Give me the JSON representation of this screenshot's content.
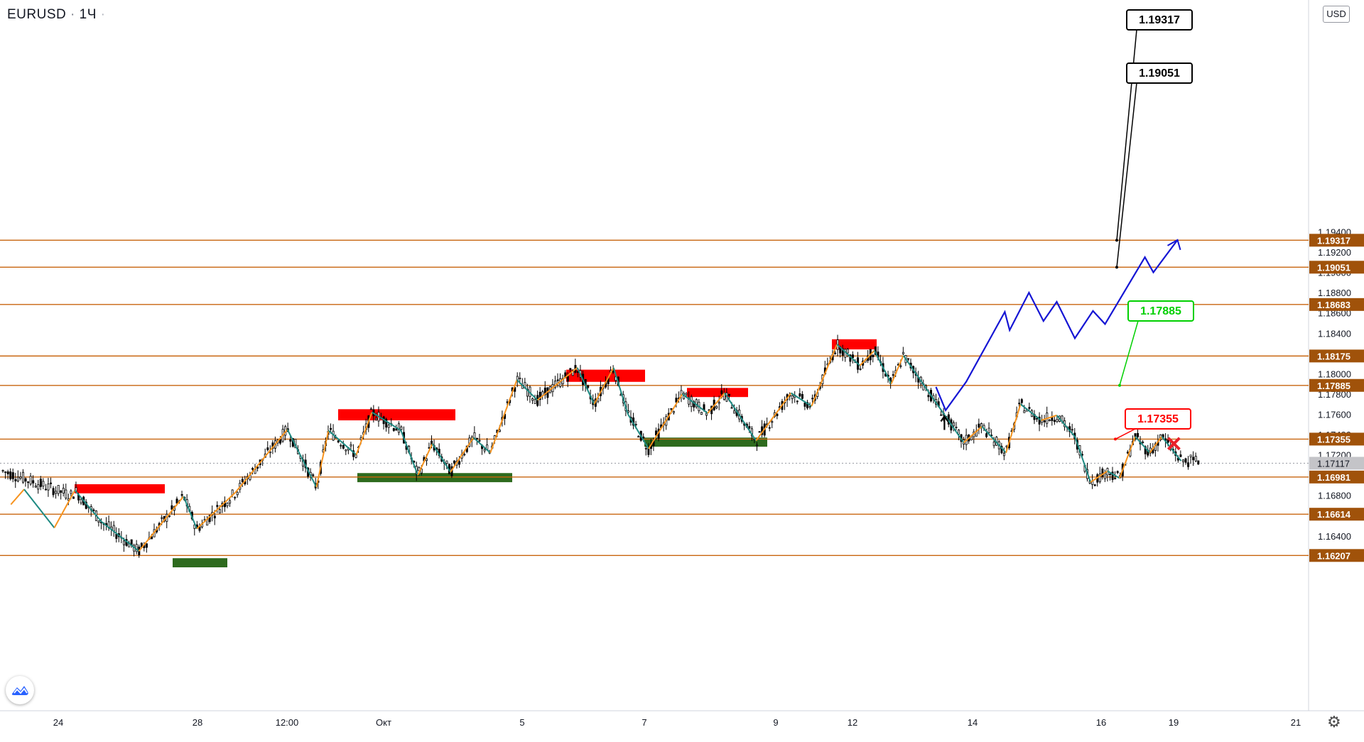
{
  "header": {
    "symbol": "EURUSD",
    "interval": "1Ч",
    "more": "·"
  },
  "currency": "USD",
  "colors": {
    "level": "#c8650f",
    "candle": "#000000",
    "zigzag_up": "#f7931e",
    "zigzag_down": "#1e8a82",
    "forecast": "#1515d4",
    "resistance": "#ff0000",
    "support": "#2e6b1e",
    "callout_black": "#000000",
    "callout_green": "#00d000",
    "callout_red": "#ff0000",
    "axis_text": "#131722",
    "current_price_bg": "#c4c4c8"
  },
  "chart_data": {
    "type": "candlestick",
    "symbol": "EURUSD",
    "interval": "1Ч",
    "ylim": [
      1.1588,
      1.1956
    ],
    "y_ticks": [
      "1.16400",
      "1.16800",
      "1.17200",
      "1.17400",
      "1.17600",
      "1.17800",
      "1.18000",
      "1.18400",
      "1.18600",
      "1.18800",
      "1.19000",
      "1.19200",
      "1.19400"
    ],
    "x_ticks": [
      "24",
      "28",
      "12:00",
      "Окт",
      "5",
      "7",
      "9",
      "12",
      "14",
      "16",
      "19",
      "21"
    ],
    "levels": [
      {
        "value": 1.19317,
        "label": "1.19317"
      },
      {
        "value": 1.19051,
        "label": "1.19051"
      },
      {
        "value": 1.18683,
        "label": "1.18683"
      },
      {
        "value": 1.18175,
        "label": "1.18175"
      },
      {
        "value": 1.17885,
        "label": "1.17885"
      },
      {
        "value": 1.17355,
        "label": "1.17355"
      },
      {
        "value": 1.16981,
        "label": "1.16981"
      },
      {
        "value": 1.16614,
        "label": "1.16614"
      },
      {
        "value": 1.16207,
        "label": "1.16207"
      }
    ],
    "current_price": "1.17117",
    "callouts": [
      {
        "text": "1.19317",
        "color": "black"
      },
      {
        "text": "1.19051",
        "color": "black"
      },
      {
        "text": "1.17885",
        "color": "green"
      },
      {
        "text": "1.17355",
        "color": "red"
      }
    ],
    "resistance_zones": [
      {
        "from": "Sep 24",
        "to": "Sep 25",
        "low": 1.1682,
        "high": 1.1691
      },
      {
        "from": "Sep 30",
        "to": "Oct 2",
        "low": 1.1754,
        "high": 1.1765
      },
      {
        "from": "Oct 5",
        "to": "Oct 6",
        "low": 1.1792,
        "high": 1.1804
      },
      {
        "from": "Oct 7",
        "to": "Oct 8",
        "low": 1.1777,
        "high": 1.1786
      },
      {
        "from": "Oct 9",
        "to": "Oct 12",
        "low": 1.1824,
        "high": 1.1834
      }
    ],
    "support_zones": [
      {
        "from": "Sep 27",
        "to": "Sep 28",
        "low": 1.1609,
        "high": 1.1618
      },
      {
        "from": "Sep 30",
        "to": "Oct 2",
        "low": 1.1693,
        "high": 1.1702
      },
      {
        "from": "Oct 7",
        "to": "Oct 8",
        "low": 1.1728,
        "high": 1.1737
      }
    ],
    "zigzag": [
      {
        "x": 0.09,
        "y": 1.1671
      },
      {
        "x": 0.2,
        "y": 1.1686
      },
      {
        "x": 0.45,
        "y": 1.1648
      },
      {
        "x": 0.62,
        "y": 1.1685
      },
      {
        "x": 0.84,
        "y": 1.1654
      },
      {
        "x": 1.15,
        "y": 1.1625
      },
      {
        "x": 1.52,
        "y": 1.1679
      },
      {
        "x": 1.63,
        "y": 1.1647
      },
      {
        "x": 1.95,
        "y": 1.1683
      },
      {
        "x": 2.38,
        "y": 1.1745
      },
      {
        "x": 2.62,
        "y": 1.1688
      },
      {
        "x": 2.72,
        "y": 1.1744
      },
      {
        "x": 2.95,
        "y": 1.172
      },
      {
        "x": 3.08,
        "y": 1.1762
      },
      {
        "x": 3.32,
        "y": 1.1744
      },
      {
        "x": 3.46,
        "y": 1.17
      },
      {
        "x": 3.58,
        "y": 1.1731
      },
      {
        "x": 3.73,
        "y": 1.1703
      },
      {
        "x": 3.92,
        "y": 1.1737
      },
      {
        "x": 4.06,
        "y": 1.1722
      },
      {
        "x": 4.28,
        "y": 1.1794
      },
      {
        "x": 4.45,
        "y": 1.1774
      },
      {
        "x": 4.78,
        "y": 1.1806
      },
      {
        "x": 4.92,
        "y": 1.177
      },
      {
        "x": 5.08,
        "y": 1.1806
      },
      {
        "x": 5.2,
        "y": 1.176
      },
      {
        "x": 5.37,
        "y": 1.1726
      },
      {
        "x": 5.65,
        "y": 1.178
      },
      {
        "x": 5.86,
        "y": 1.1761
      },
      {
        "x": 6.0,
        "y": 1.1781
      },
      {
        "x": 6.26,
        "y": 1.1734
      },
      {
        "x": 6.55,
        "y": 1.1781
      },
      {
        "x": 6.72,
        "y": 1.1768
      },
      {
        "x": 6.93,
        "y": 1.1829
      },
      {
        "x": 7.12,
        "y": 1.1808
      },
      {
        "x": 7.24,
        "y": 1.1823
      },
      {
        "x": 7.38,
        "y": 1.179
      },
      {
        "x": 7.48,
        "y": 1.1818
      },
      {
        "x": 7.98,
        "y": 1.1732
      },
      {
        "x": 8.13,
        "y": 1.1748
      },
      {
        "x": 8.33,
        "y": 1.1722
      },
      {
        "x": 8.45,
        "y": 1.177
      },
      {
        "x": 8.62,
        "y": 1.1754
      },
      {
        "x": 8.75,
        "y": 1.1759
      },
      {
        "x": 8.9,
        "y": 1.1738
      },
      {
        "x": 9.03,
        "y": 1.1693
      },
      {
        "x": 9.17,
        "y": 1.1704
      },
      {
        "x": 9.27,
        "y": 1.1697
      },
      {
        "x": 9.4,
        "y": 1.1738
      },
      {
        "x": 9.52,
        "y": 1.1722
      },
      {
        "x": 9.62,
        "y": 1.1738
      },
      {
        "x": 9.78,
        "y": 1.1714
      }
    ],
    "forecast": [
      {
        "x": 7.75,
        "y": 1.1787
      },
      {
        "x": 7.83,
        "y": 1.1764
      },
      {
        "x": 8.0,
        "y": 1.1792
      },
      {
        "x": 8.32,
        "y": 1.1861
      },
      {
        "x": 8.36,
        "y": 1.1843
      },
      {
        "x": 8.52,
        "y": 1.188
      },
      {
        "x": 8.64,
        "y": 1.1852
      },
      {
        "x": 8.75,
        "y": 1.1871
      },
      {
        "x": 8.9,
        "y": 1.1835
      },
      {
        "x": 9.05,
        "y": 1.1862
      },
      {
        "x": 9.15,
        "y": 1.1849
      },
      {
        "x": 9.48,
        "y": 1.1915
      },
      {
        "x": 9.55,
        "y": 1.19
      },
      {
        "x": 9.75,
        "y": 1.1932
      }
    ],
    "markers": [
      {
        "type": "arrow-up",
        "x": 7.82,
        "y": 1.1753
      },
      {
        "type": "cross",
        "x": 9.72,
        "y": 1.1731
      }
    ]
  }
}
